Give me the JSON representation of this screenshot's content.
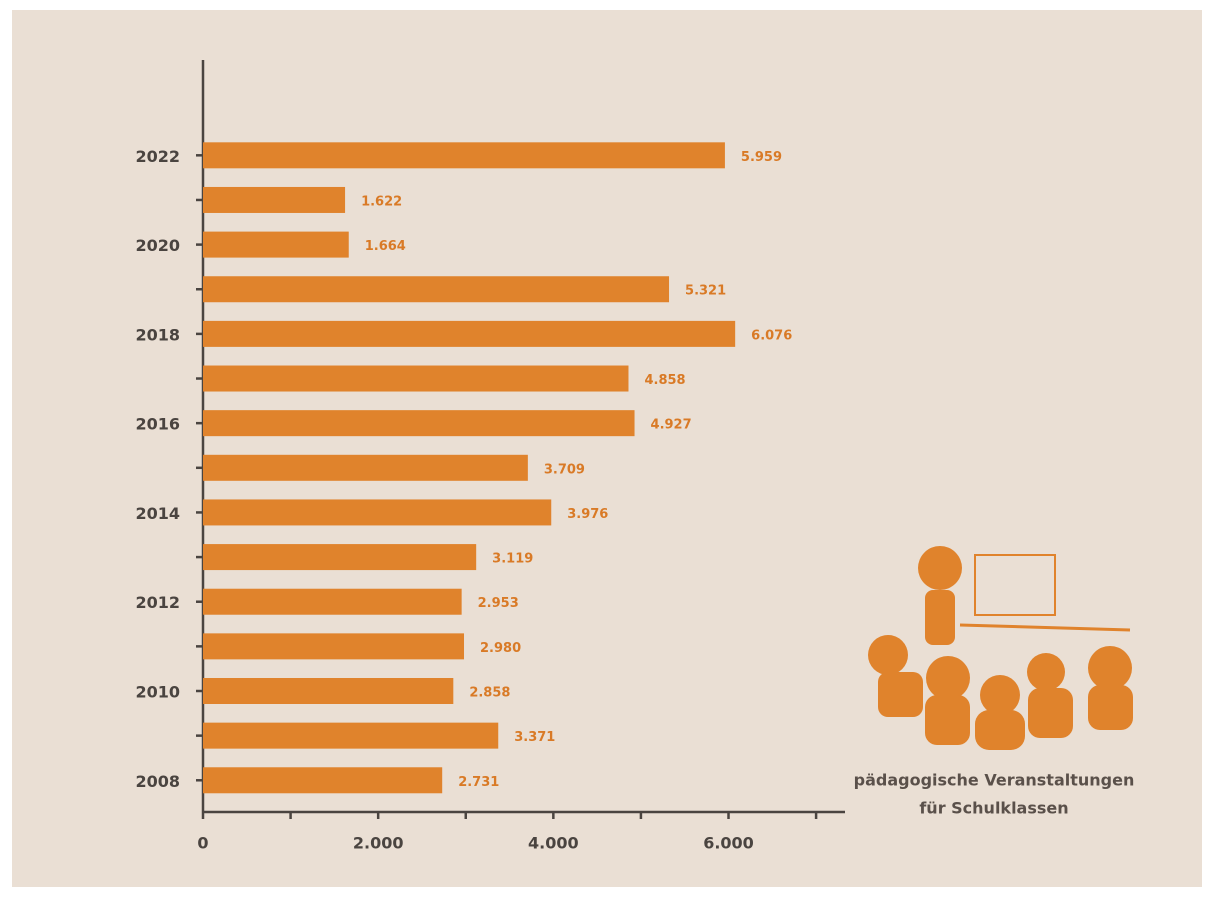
{
  "chart_data": {
    "type": "hbar",
    "categories": [
      "2022",
      null,
      "2020",
      null,
      "2018",
      null,
      "2016",
      null,
      "2014",
      null,
      "2012",
      null,
      "2010",
      null,
      "2008"
    ],
    "values": [
      5959,
      1622,
      1664,
      5321,
      6076,
      4858,
      4927,
      3709,
      3976,
      3119,
      2953,
      2980,
      2858,
      3371,
      2731
    ],
    "value_labels": [
      "5.959",
      "1.622",
      "1.664",
      "5.321",
      "6.076",
      "4.858",
      "4.927",
      "3.709",
      "3.976",
      "3.119",
      "2.953",
      "2.980",
      "2.858",
      "3.371",
      "2.731"
    ],
    "color": "#e0832c",
    "xlim": [
      0,
      7330
    ],
    "xticks": [
      0,
      {
        "value": 2000,
        "label": "2.000"
      },
      {
        "value": 4000,
        "label": "4.000"
      },
      {
        "value": 6000,
        "label": "6.000"
      }
    ],
    "xminorticks": [
      1000,
      3000,
      5000,
      7000
    ],
    "caption": [
      "pädagogische Veranstaltungen",
      "für Schulklassen"
    ]
  }
}
